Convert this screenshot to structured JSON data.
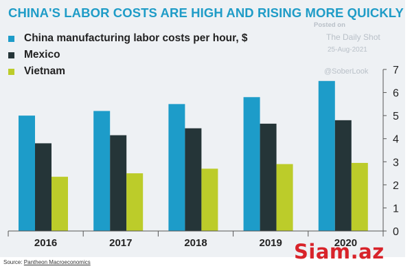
{
  "title": "CHINA'S LABOR COSTS ARE HIGH AND RISING MORE QUICKLY",
  "watermark": {
    "posted_on": "Posted on",
    "publisher": "The Daily Shot",
    "date": "25-Aug-2021",
    "handle": "@SoberLook"
  },
  "source": {
    "prefix": "Source: ",
    "name": "Pantheon Macroeconomics"
  },
  "logo_text": "Siam.az",
  "colors": {
    "china": "#1d9cc9",
    "mexico": "#253538",
    "vietnam": "#bccc2a",
    "title": "#1f9cc7",
    "background": "#eef1f4"
  },
  "chart_data": {
    "type": "bar",
    "categories": [
      "2016",
      "2017",
      "2018",
      "2019",
      "2020"
    ],
    "series": [
      {
        "name": "China manufacturing labor costs per hour, $",
        "values": [
          5.0,
          5.2,
          5.5,
          5.8,
          6.5
        ]
      },
      {
        "name": "Mexico",
        "values": [
          3.8,
          4.15,
          4.45,
          4.65,
          4.8
        ]
      },
      {
        "name": "Vietnam",
        "values": [
          2.35,
          2.5,
          2.7,
          2.9,
          2.95
        ]
      }
    ],
    "y_ticks": [
      "0",
      "1",
      "2",
      "3",
      "4",
      "5",
      "6",
      "7"
    ],
    "ylim": [
      0,
      7
    ],
    "y_axis_side": "right",
    "legend_position": "top-left",
    "grid": false
  }
}
